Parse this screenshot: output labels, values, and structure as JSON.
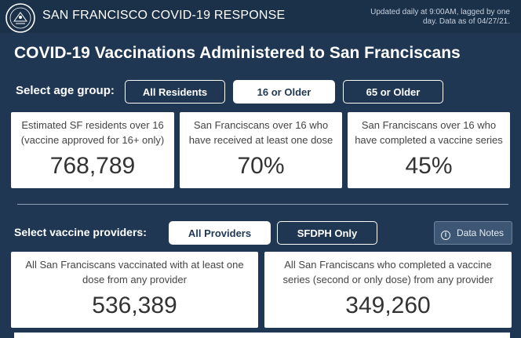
{
  "header": {
    "brand": "SAN FRANCISCO COVID-19 RESPONSE",
    "updated_note": "Updated daily at 9:00AM, lagged by one day. Data as of 04/27/21.",
    "seal_icon": "city-seal-icon"
  },
  "page_title": "COVID-19 Vaccinations Administered to San Franciscans",
  "age_group": {
    "label": "Select age group:",
    "options": [
      "All Residents",
      "16 or Older",
      "65 or Older"
    ],
    "selected": "16 or Older"
  },
  "stats": [
    {
      "desc": "Estimated SF residents over 16 (vaccine approved for 16+ only)",
      "value": "768,789"
    },
    {
      "desc": "San Franciscans over 16 who have received at least one dose",
      "value": "70%"
    },
    {
      "desc": "San Franciscans over 16 who have completed a vaccine series",
      "value": "45%"
    }
  ],
  "providers": {
    "label": "Select vaccine providers:",
    "options": [
      "All Providers",
      "SFDPH Only"
    ],
    "selected": "All Providers",
    "data_notes_label": "Data Notes",
    "data_notes_icon": "info-icon"
  },
  "provider_stats": [
    {
      "desc": "All San Franciscans vaccinated with at least one dose from any provider",
      "value": "536,389"
    },
    {
      "desc": "All San Franciscans who completed a vaccine series (second or only dose) from any provider",
      "value": "349,260"
    }
  ],
  "colors": {
    "background": "#1f3752",
    "header": "#1b3049",
    "card": "#ffffff",
    "accent_text": "#1f3752"
  }
}
